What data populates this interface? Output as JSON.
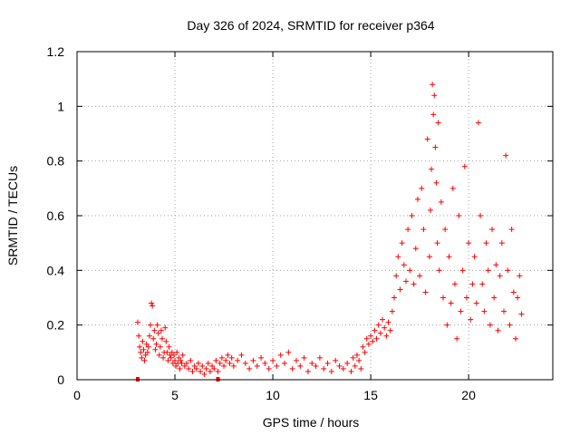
{
  "chart_data": {
    "type": "scatter",
    "title": "Day 326 of 2024, SRMTID for receiver p364",
    "xlabel": "GPS time / hours",
    "ylabel": "SRMTID / TECUs",
    "xlim": [
      0,
      24.3
    ],
    "ylim": [
      0,
      1.2
    ],
    "xticks": [
      0,
      5,
      10,
      15,
      20
    ],
    "xtick_labels": [
      "0",
      "5",
      "10",
      "15",
      "20"
    ],
    "yticks": [
      0,
      0.2,
      0.4,
      0.6,
      0.8,
      1.0,
      1.2
    ],
    "ytick_labels": [
      "0",
      "0.2",
      "0.4",
      "0.6",
      "0.8",
      "1",
      "1.2"
    ],
    "grid": true,
    "marker": "plus",
    "color": "#ff0000",
    "series": [
      {
        "name": "SRMTID",
        "x": [
          3.1,
          3.15,
          3.2,
          3.25,
          3.3,
          3.35,
          3.4,
          3.45,
          3.5,
          3.55,
          3.6,
          3.65,
          3.7,
          3.75,
          3.8,
          3.85,
          3.9,
          3.95,
          4.0,
          4.05,
          4.1,
          4.15,
          4.2,
          4.25,
          4.3,
          4.35,
          4.4,
          4.45,
          4.5,
          4.55,
          4.6,
          4.65,
          4.7,
          4.75,
          4.8,
          4.85,
          4.9,
          4.95,
          5.0,
          5.05,
          5.1,
          5.15,
          5.2,
          5.25,
          5.3,
          5.35,
          5.4,
          5.5,
          5.6,
          5.7,
          5.8,
          5.9,
          6.0,
          6.1,
          6.2,
          6.3,
          6.4,
          6.5,
          6.6,
          6.7,
          6.8,
          6.9,
          7.0,
          7.1,
          7.2,
          7.3,
          7.4,
          7.5,
          7.6,
          7.7,
          7.8,
          7.9,
          8.0,
          8.2,
          8.4,
          8.6,
          8.8,
          9.0,
          9.2,
          9.4,
          9.6,
          9.8,
          10.0,
          10.2,
          10.4,
          10.6,
          10.8,
          11.0,
          11.2,
          11.4,
          11.6,
          11.8,
          12.0,
          12.2,
          12.4,
          12.6,
          12.8,
          13.0,
          13.2,
          13.4,
          13.6,
          13.8,
          14.0,
          14.1,
          14.2,
          14.3,
          14.4,
          14.5,
          14.6,
          14.7,
          14.8,
          14.9,
          15.0,
          15.1,
          15.2,
          15.3,
          15.4,
          15.5,
          15.6,
          15.7,
          15.8,
          15.9,
          16.0,
          16.1,
          16.2,
          16.3,
          16.4,
          16.5,
          16.6,
          16.7,
          16.8,
          16.9,
          17.0,
          17.1,
          17.2,
          17.3,
          17.4,
          17.5,
          17.6,
          17.7,
          17.8,
          17.9,
          18.0,
          18.05,
          18.1,
          18.15,
          18.2,
          18.25,
          18.3,
          18.35,
          18.4,
          18.45,
          18.5,
          18.6,
          18.7,
          18.8,
          18.9,
          19.0,
          19.1,
          19.2,
          19.3,
          19.4,
          19.5,
          19.6,
          19.7,
          19.8,
          19.9,
          20.0,
          20.1,
          20.2,
          20.3,
          20.4,
          20.5,
          20.6,
          20.7,
          20.8,
          20.9,
          21.0,
          21.1,
          21.2,
          21.3,
          21.4,
          21.5,
          21.6,
          21.7,
          21.8,
          21.9,
          22.0,
          22.1,
          22.2,
          22.3,
          22.4,
          22.5,
          22.6,
          22.7
        ],
        "y": [
          0.21,
          0.16,
          0.12,
          0.1,
          0.08,
          0.14,
          0.11,
          0.07,
          0.09,
          0.13,
          0.1,
          0.12,
          0.16,
          0.2,
          0.28,
          0.27,
          0.15,
          0.18,
          0.11,
          0.13,
          0.2,
          0.17,
          0.09,
          0.12,
          0.18,
          0.15,
          0.08,
          0.1,
          0.19,
          0.14,
          0.1,
          0.07,
          0.12,
          0.09,
          0.08,
          0.1,
          0.06,
          0.09,
          0.07,
          0.05,
          0.1,
          0.06,
          0.08,
          0.04,
          0.07,
          0.06,
          0.09,
          0.05,
          0.06,
          0.04,
          0.07,
          0.03,
          0.05,
          0.04,
          0.06,
          0.03,
          0.05,
          0.02,
          0.04,
          0.06,
          0.03,
          0.05,
          0.04,
          0.07,
          0.03,
          0.06,
          0.08,
          0.05,
          0.07,
          0.09,
          0.06,
          0.08,
          0.05,
          0.07,
          0.09,
          0.06,
          0.04,
          0.07,
          0.05,
          0.08,
          0.06,
          0.04,
          0.07,
          0.05,
          0.09,
          0.06,
          0.1,
          0.04,
          0.07,
          0.05,
          0.08,
          0.03,
          0.06,
          0.05,
          0.08,
          0.04,
          0.06,
          0.03,
          0.07,
          0.05,
          0.04,
          0.06,
          0.03,
          0.08,
          0.05,
          0.09,
          0.07,
          0.04,
          0.12,
          0.1,
          0.15,
          0.13,
          0.16,
          0.14,
          0.18,
          0.15,
          0.2,
          0.17,
          0.22,
          0.19,
          0.16,
          0.21,
          0.18,
          0.25,
          0.3,
          0.38,
          0.45,
          0.33,
          0.5,
          0.42,
          0.36,
          0.55,
          0.4,
          0.6,
          0.35,
          0.48,
          0.66,
          0.38,
          0.7,
          0.55,
          0.32,
          0.88,
          0.45,
          0.62,
          0.77,
          1.08,
          0.97,
          1.04,
          0.85,
          0.72,
          0.5,
          0.94,
          0.4,
          0.65,
          0.3,
          0.55,
          0.2,
          0.45,
          0.28,
          0.7,
          0.35,
          0.15,
          0.6,
          0.25,
          0.4,
          0.78,
          0.3,
          0.5,
          0.22,
          0.35,
          0.45,
          0.28,
          0.94,
          0.6,
          0.35,
          0.25,
          0.5,
          0.4,
          0.2,
          0.55,
          0.3,
          0.42,
          0.18,
          0.38,
          0.5,
          0.25,
          0.82,
          0.4,
          0.2,
          0.55,
          0.32,
          0.15,
          0.3,
          0.38,
          0.24
        ]
      }
    ],
    "baseline_markers_x": [
      3.1,
      7.2
    ]
  }
}
